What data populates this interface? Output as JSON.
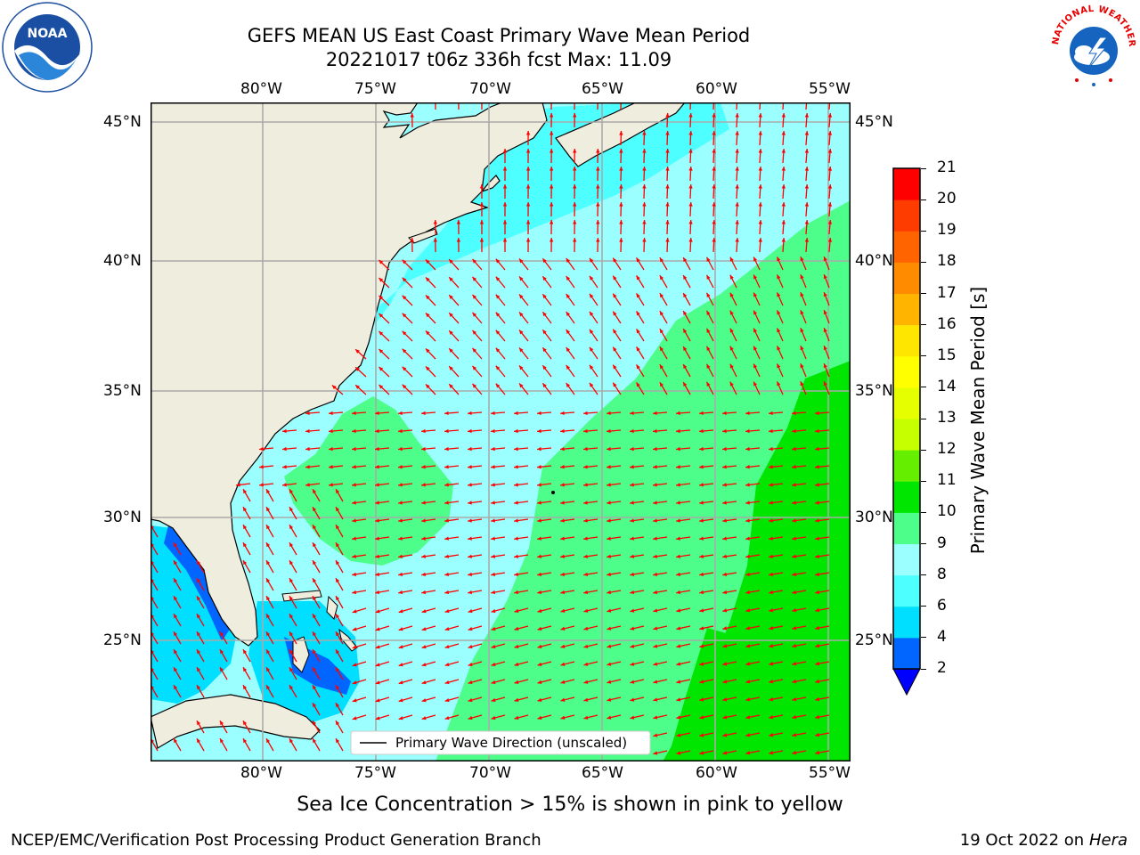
{
  "title": {
    "line1": "GEFS MEAN US East Coast Primary Wave Mean Period",
    "line2": "20221017 t06z 336h fcst   Max: 11.09"
  },
  "logos": {
    "left": "NOAA",
    "right": "NATIONAL WEATHER SERVICE"
  },
  "map": {
    "projection": "PlateCarree",
    "lon_range": [
      -85,
      -54
    ],
    "lat_range": [
      20.5,
      46
    ],
    "lon_ticks": [
      "80°W",
      "75°W",
      "70°W",
      "65°W",
      "60°W",
      "55°W"
    ],
    "lat_ticks": [
      "45°N",
      "40°N",
      "35°N",
      "30°N",
      "25°N"
    ],
    "grid": true,
    "land_color": "#efedde",
    "arrow_color": "#ff0000",
    "legend": {
      "label": "Primary Wave Direction (unscaled)",
      "placement": "bottom-center"
    }
  },
  "colorbar": {
    "label": "Primary Wave Mean Period [s]",
    "ticks": [
      "2",
      "4",
      "6",
      "8",
      "9",
      "10",
      "11",
      "12",
      "13",
      "14",
      "15",
      "16",
      "17",
      "18",
      "19",
      "20",
      "21"
    ],
    "colors": [
      "#0066ff",
      "#00dfff",
      "#4dffff",
      "#9bffff",
      "#4dff8a",
      "#00e600",
      "#66ee00",
      "#c6ff00",
      "#e6ff00",
      "#ffff00",
      "#ffe600",
      "#ffb400",
      "#ff8c00",
      "#ff6400",
      "#ff3c00",
      "#ff0000"
    ],
    "under_color": "#0000ff"
  },
  "chart_data": {
    "type": "heatmap",
    "title": "GEFS MEAN US East Coast Primary Wave Mean Period",
    "subtitle": "20221017 t06z 336h fcst   Max: 11.09",
    "variable": "Primary Wave Mean Period [s]",
    "max": 11.09,
    "x_range": [
      -85,
      -54
    ],
    "y_range": [
      20.5,
      46
    ],
    "regions": [
      {
        "area": "Gulf of Maine / New England shelf",
        "period_s": "6-8"
      },
      {
        "area": "Mid-Atlantic Bight open water",
        "period_s": "8-9"
      },
      {
        "area": "Off Carolinas / Georgia",
        "period_s": "9-10"
      },
      {
        "area": "Central Atlantic east of 68W",
        "period_s": "9-10"
      },
      {
        "area": "Far eastern Atlantic 55-60W",
        "period_s": "10-11"
      },
      {
        "area": "Gulf of Mexico / Florida Straits",
        "period_s": "2-6"
      }
    ]
  },
  "bottom_note": "Sea Ice Concentration > 15% is shown in pink to yellow",
  "footer": {
    "left": "NCEP/EMC/Verification Post Processing Product Generation Branch",
    "right_date": "19 Oct 2022 on ",
    "right_machine": "Hera"
  }
}
